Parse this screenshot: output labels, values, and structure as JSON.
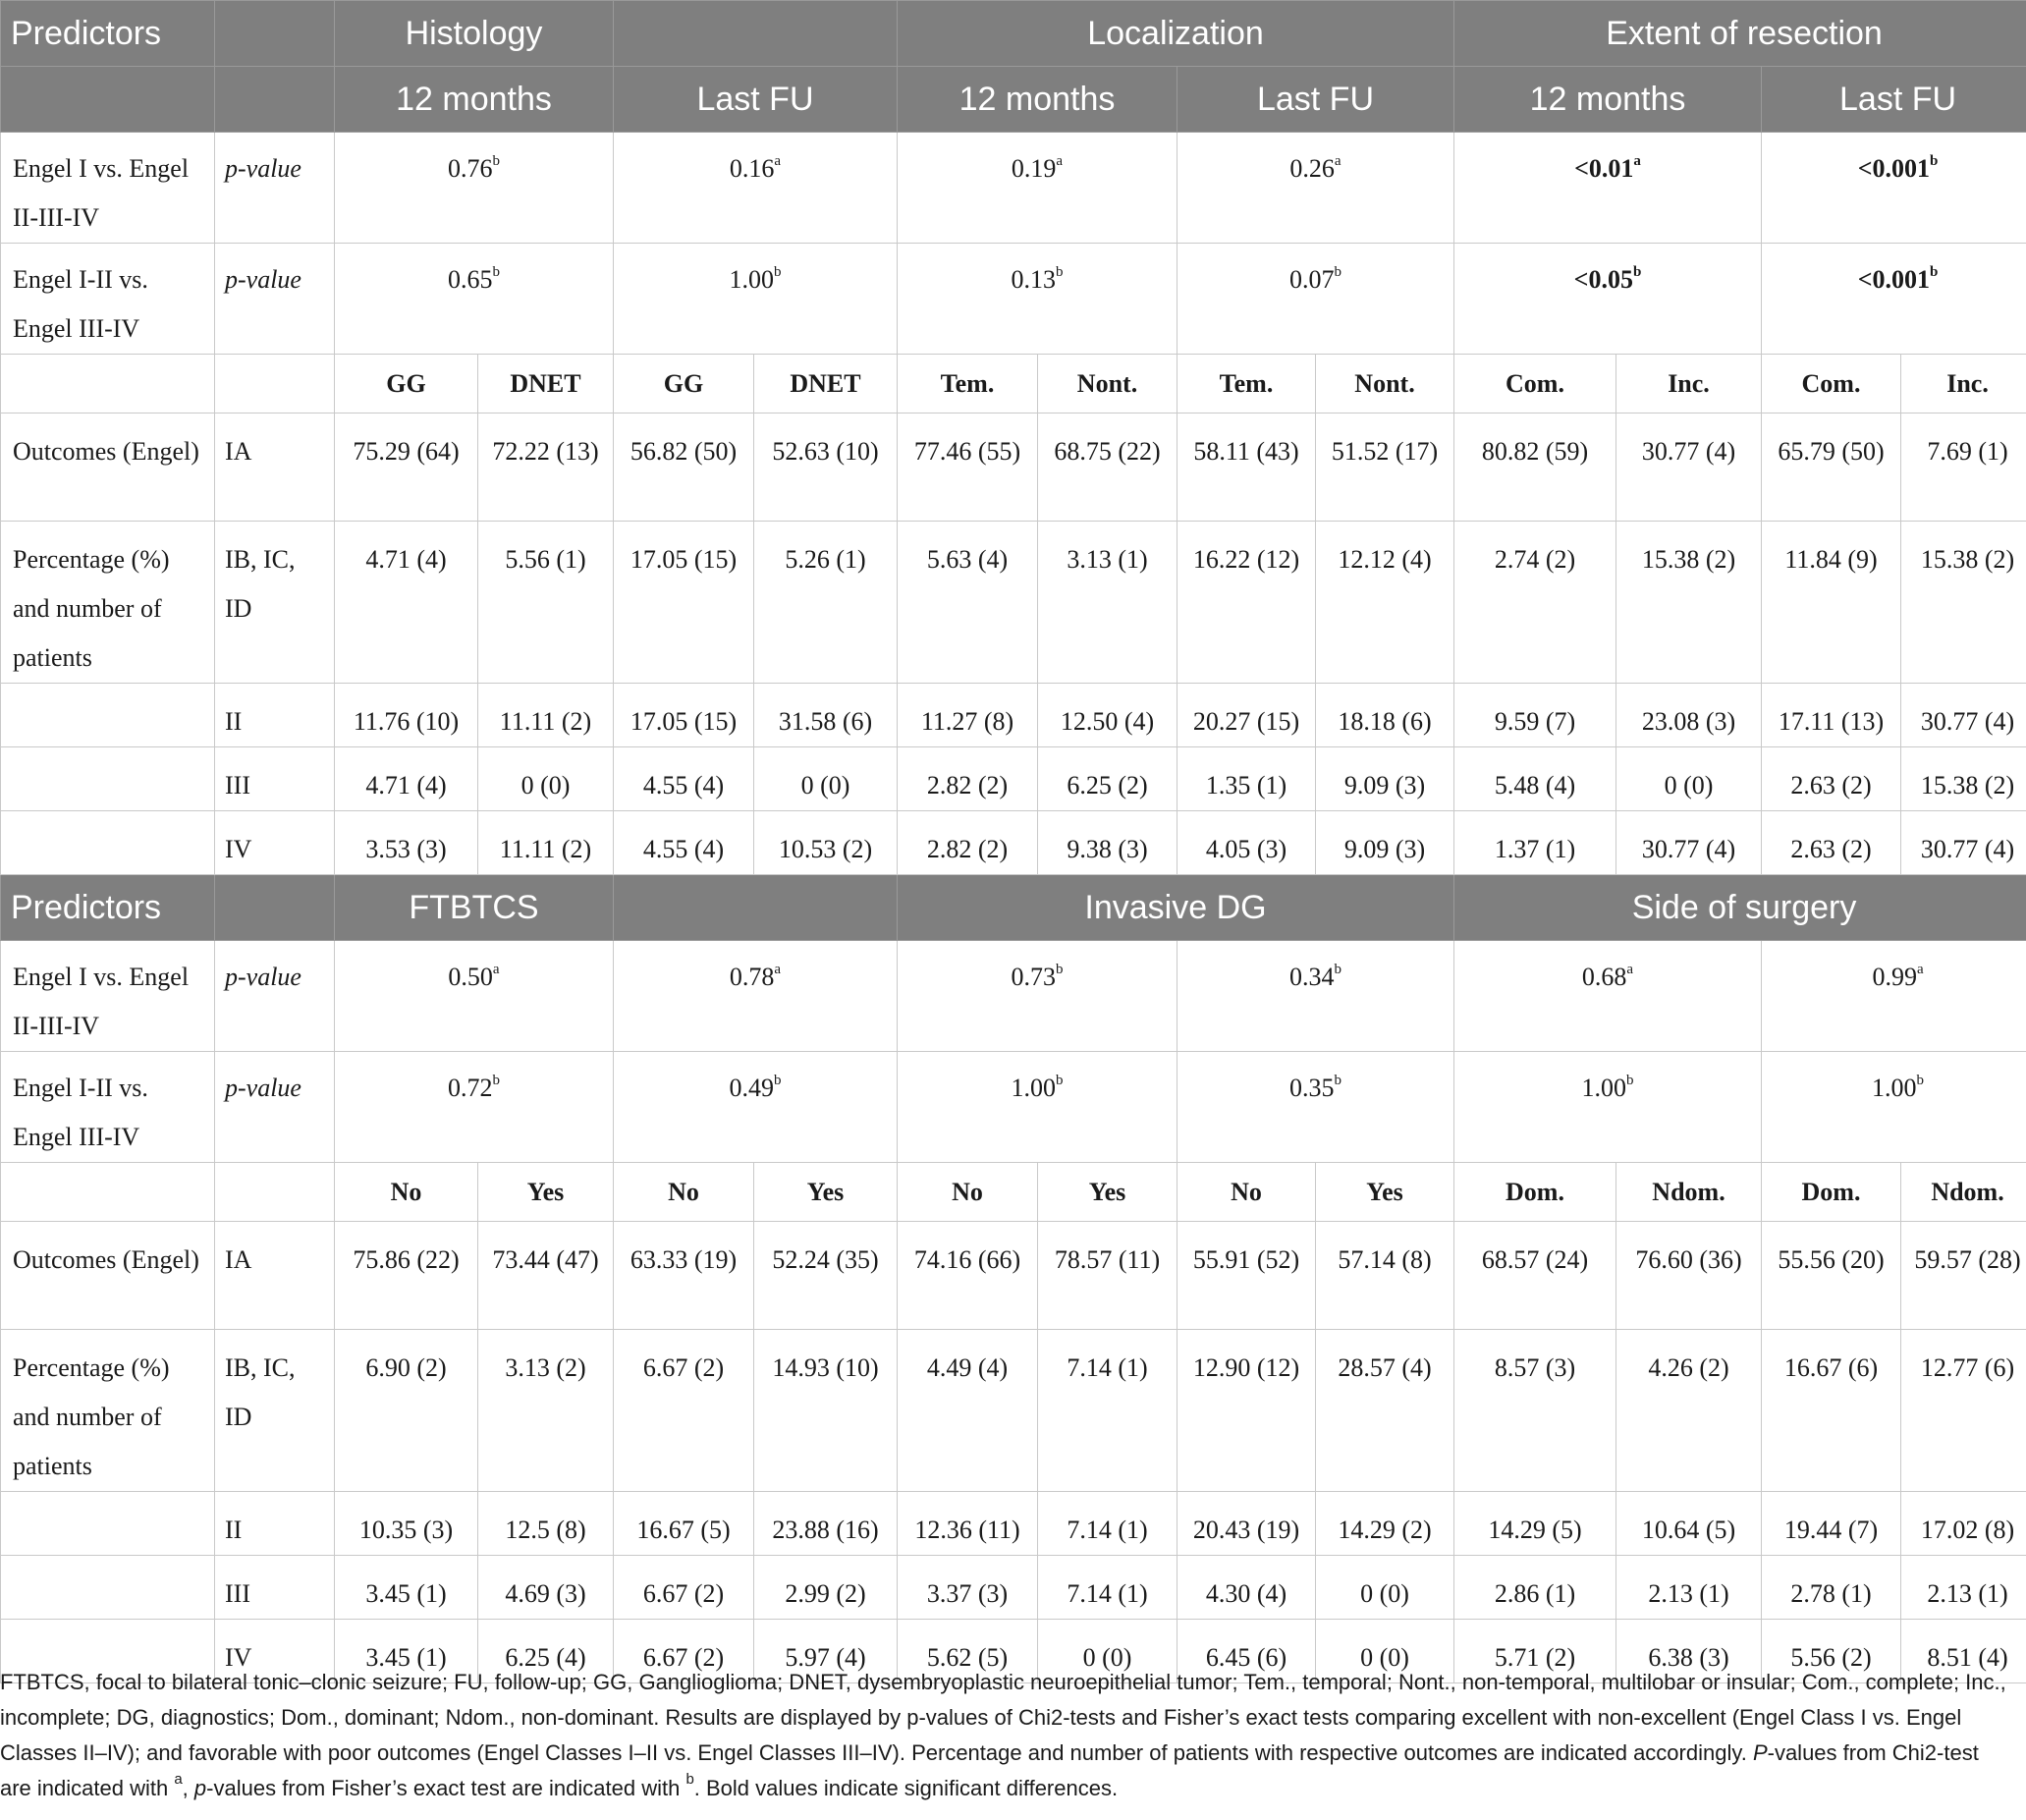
{
  "section1": {
    "predictors_label": "Predictors",
    "groups": [
      "Histology",
      "Localization",
      "Extent of resection"
    ],
    "timepoints": [
      "12 months",
      "Last FU",
      "12 months",
      "Last FU",
      "12 months",
      "Last FU"
    ],
    "pvalue_rows": [
      {
        "label": "Engel I vs. Engel II-III-IV",
        "stat": "p-value",
        "values": [
          {
            "v": "0.76",
            "s": "b",
            "bold": false
          },
          {
            "v": "0.16",
            "s": "a",
            "bold": false
          },
          {
            "v": "0.19",
            "s": "a",
            "bold": false
          },
          {
            "v": "0.26",
            "s": "a",
            "bold": false
          },
          {
            "v": "<0.01",
            "s": "a",
            "bold": true
          },
          {
            "v": "<0.001",
            "s": "b",
            "bold": true
          }
        ]
      },
      {
        "label": "Engel I-II vs. Engel III-IV",
        "stat": "p-value",
        "values": [
          {
            "v": "0.65",
            "s": "b",
            "bold": false
          },
          {
            "v": "1.00",
            "s": "b",
            "bold": false
          },
          {
            "v": "0.13",
            "s": "b",
            "bold": false
          },
          {
            "v": "0.07",
            "s": "b",
            "bold": false
          },
          {
            "v": "<0.05",
            "s": "b",
            "bold": true
          },
          {
            "v": "<0.001",
            "s": "b",
            "bold": true
          }
        ]
      }
    ],
    "subheaders": [
      "GG",
      "DNET",
      "GG",
      "DNET",
      "Tem.",
      "Nont.",
      "Tem.",
      "Nont.",
      "Com.",
      "Inc.",
      "Com.",
      "Inc."
    ],
    "outcome_rows": [
      {
        "label": "Outcomes (Engel)",
        "cls": "IA",
        "values": [
          "75.29 (64)",
          "72.22 (13)",
          "56.82 (50)",
          "52.63 (10)",
          "77.46 (55)",
          "68.75 (22)",
          "58.11 (43)",
          "51.52 (17)",
          "80.82 (59)",
          "30.77 (4)",
          "65.79 (50)",
          "7.69 (1)"
        ]
      },
      {
        "label": "Percentage (%) and number of patients",
        "cls": "IB, IC, ID",
        "values": [
          "4.71 (4)",
          "5.56 (1)",
          "17.05 (15)",
          "5.26 (1)",
          "5.63 (4)",
          "3.13 (1)",
          "16.22 (12)",
          "12.12 (4)",
          "2.74 (2)",
          "15.38 (2)",
          "11.84 (9)",
          "15.38 (2)"
        ]
      },
      {
        "label": "",
        "cls": "II",
        "values": [
          "11.76 (10)",
          "11.11 (2)",
          "17.05 (15)",
          "31.58 (6)",
          "11.27 (8)",
          "12.50 (4)",
          "20.27 (15)",
          "18.18 (6)",
          "9.59 (7)",
          "23.08 (3)",
          "17.11 (13)",
          "30.77 (4)"
        ]
      },
      {
        "label": "",
        "cls": "III",
        "values": [
          "4.71 (4)",
          "0 (0)",
          "4.55 (4)",
          "0 (0)",
          "2.82 (2)",
          "6.25 (2)",
          "1.35 (1)",
          "9.09 (3)",
          "5.48 (4)",
          "0 (0)",
          "2.63 (2)",
          "15.38 (2)"
        ]
      },
      {
        "label": "",
        "cls": "IV",
        "values": [
          "3.53 (3)",
          "11.11 (2)",
          "4.55 (4)",
          "10.53 (2)",
          "2.82 (2)",
          "9.38 (3)",
          "4.05 (3)",
          "9.09 (3)",
          "1.37 (1)",
          "30.77 (4)",
          "2.63 (2)",
          "30.77 (4)"
        ]
      }
    ]
  },
  "section2": {
    "predictors_label": "Predictors",
    "groups": [
      "FTBTCS",
      "Invasive DG",
      "Side of surgery"
    ],
    "pvalue_rows": [
      {
        "label": "Engel I vs. Engel II-III-IV",
        "stat": "p-value",
        "values": [
          {
            "v": "0.50",
            "s": "a",
            "bold": false
          },
          {
            "v": "0.78",
            "s": "a",
            "bold": false
          },
          {
            "v": "0.73",
            "s": "b",
            "bold": false
          },
          {
            "v": "0.34",
            "s": "b",
            "bold": false
          },
          {
            "v": "0.68",
            "s": "a",
            "bold": false
          },
          {
            "v": "0.99",
            "s": "a",
            "bold": false
          }
        ]
      },
      {
        "label": "Engel I-II vs. Engel III-IV",
        "stat": "p-value",
        "values": [
          {
            "v": "0.72",
            "s": "b",
            "bold": false
          },
          {
            "v": "0.49",
            "s": "b",
            "bold": false
          },
          {
            "v": "1.00",
            "s": "b",
            "bold": false
          },
          {
            "v": "0.35",
            "s": "b",
            "bold": false
          },
          {
            "v": "1.00",
            "s": "b",
            "bold": false
          },
          {
            "v": "1.00",
            "s": "b",
            "bold": false
          }
        ]
      }
    ],
    "subheaders": [
      "No",
      "Yes",
      "No",
      "Yes",
      "No",
      "Yes",
      "No",
      "Yes",
      "Dom.",
      "Ndom.",
      "Dom.",
      "Ndom."
    ],
    "outcome_rows": [
      {
        "label": "Outcomes (Engel)",
        "cls": "IA",
        "values": [
          "75.86 (22)",
          "73.44 (47)",
          "63.33 (19)",
          "52.24 (35)",
          "74.16 (66)",
          "78.57 (11)",
          "55.91 (52)",
          "57.14 (8)",
          "68.57 (24)",
          "76.60 (36)",
          "55.56 (20)",
          "59.57 (28)"
        ]
      },
      {
        "label": "Percentage (%) and number of patients",
        "cls": "IB, IC, ID",
        "values": [
          "6.90 (2)",
          "3.13 (2)",
          "6.67 (2)",
          "14.93 (10)",
          "4.49 (4)",
          "7.14 (1)",
          "12.90 (12)",
          "28.57 (4)",
          "8.57 (3)",
          "4.26 (2)",
          "16.67 (6)",
          "12.77 (6)"
        ]
      },
      {
        "label": "",
        "cls": "II",
        "values": [
          "10.35 (3)",
          "12.5 (8)",
          "16.67 (5)",
          "23.88 (16)",
          "12.36 (11)",
          "7.14 (1)",
          "20.43 (19)",
          "14.29 (2)",
          "14.29 (5)",
          "10.64 (5)",
          "19.44 (7)",
          "17.02 (8)"
        ]
      },
      {
        "label": "",
        "cls": "III",
        "values": [
          "3.45 (1)",
          "4.69 (3)",
          "6.67 (2)",
          "2.99 (2)",
          "3.37 (3)",
          "7.14 (1)",
          "4.30 (4)",
          "0 (0)",
          "2.86 (1)",
          "2.13 (1)",
          "2.78 (1)",
          "2.13 (1)"
        ]
      },
      {
        "label": "",
        "cls": "IV",
        "values": [
          "3.45 (1)",
          "6.25 (4)",
          "6.67 (2)",
          "5.97 (4)",
          "5.62 (5)",
          "0 (0)",
          "6.45 (6)",
          "0 (0)",
          "5.71 (2)",
          "6.38 (3)",
          "5.56 (2)",
          "8.51 (4)"
        ]
      }
    ]
  },
  "footnote": {
    "part1": "FTBTCS, focal to bilateral tonic–clonic seizure; FU, follow-up; GG, Ganglioglioma; DNET, dysembryoplastic neuroepithelial tumor; Tem., temporal; Nont., non-temporal, multilobar or insular; Com., complete; Inc., incomplete; DG, diagnostics; Dom., dominant; Ndom., non-dominant. Results are displayed by p-values of Chi2-tests and Fisher’s exact tests comparing excellent with non-excellent (Engel Class I vs. Engel Classes II–IV); and favorable with poor outcomes (Engel Classes I–II vs. Engel Classes III–IV). Percentage and number of patients with respective outcomes are indicated accordingly. ",
    "p1": "P",
    "part2": "-values from Chi2-test are indicated with ",
    "sup_a": "a",
    "part3": ", ",
    "p2": "p",
    "part4": "-values from Fisher’s exact test are indicated with ",
    "sup_b": "b",
    "part5": ". Bold values indicate significant differences."
  }
}
